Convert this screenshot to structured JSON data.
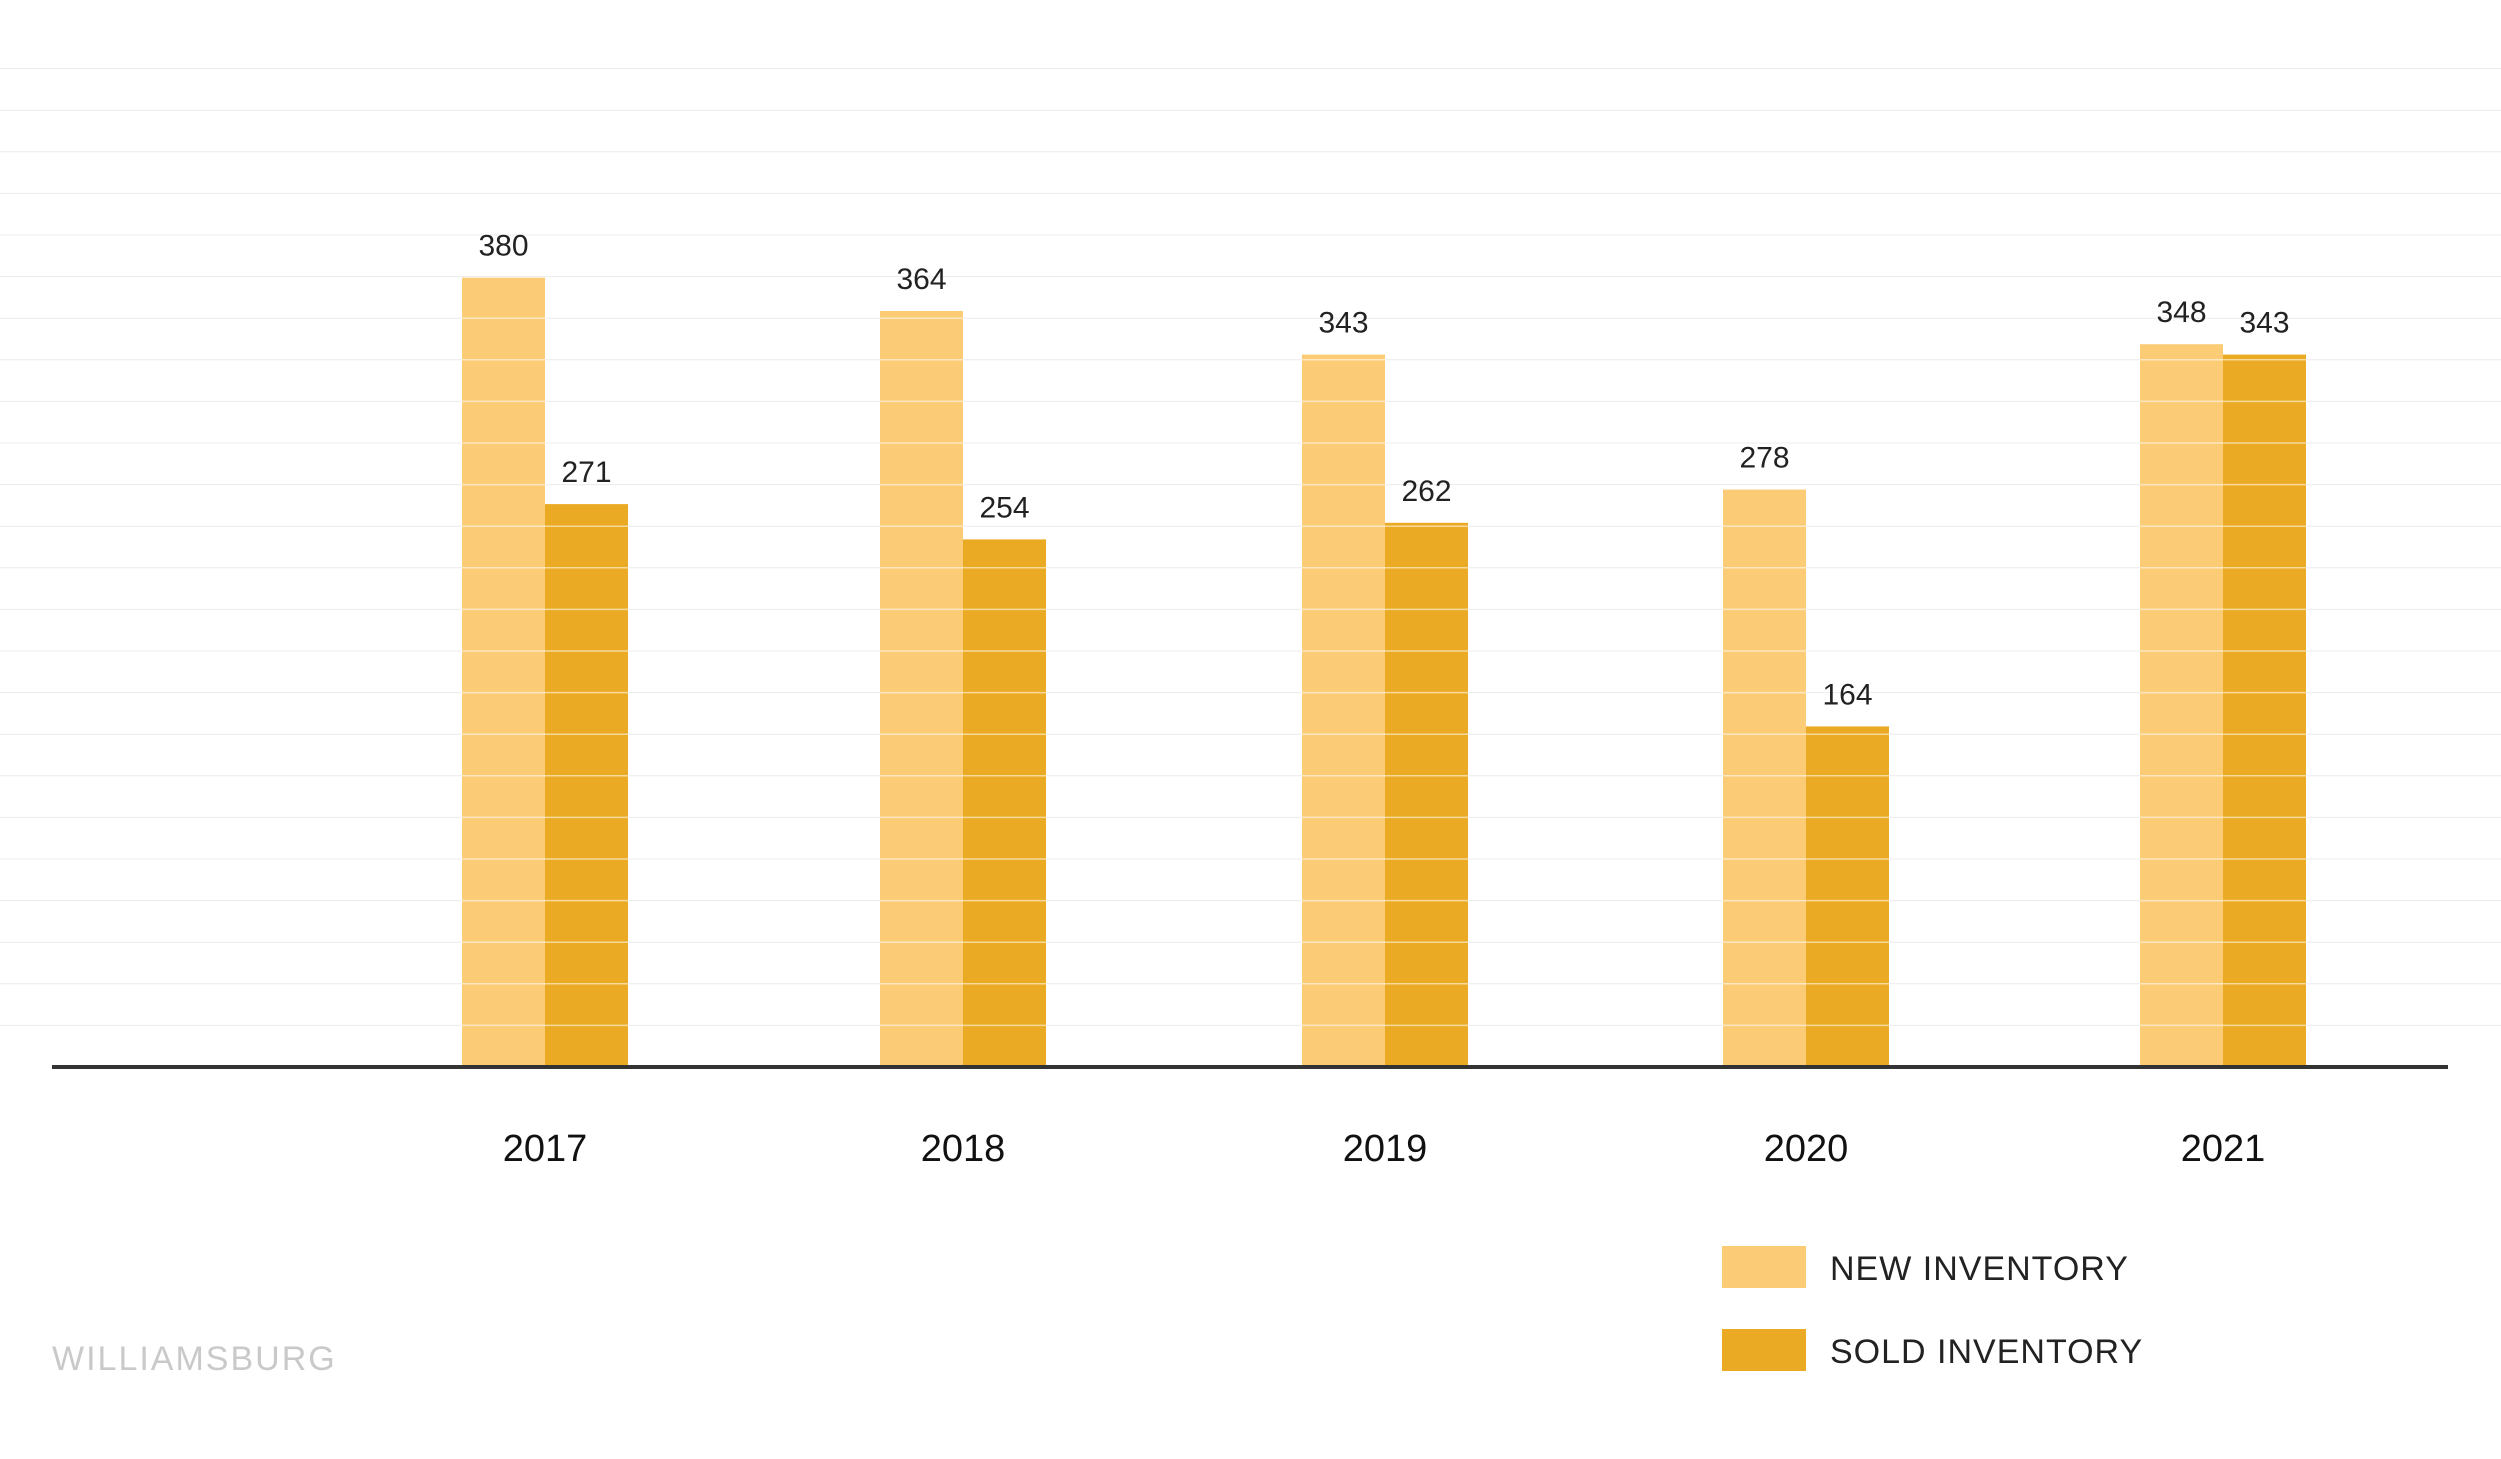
{
  "chart_data": {
    "type": "bar",
    "categories": [
      "2017",
      "2018",
      "2019",
      "2020",
      "2021"
    ],
    "series": [
      {
        "name": "NEW INVENTORY",
        "values": [
          380,
          364,
          343,
          278,
          348
        ],
        "color": "#FCCB75"
      },
      {
        "name": "SOLD INVENTORY",
        "values": [
          271,
          254,
          262,
          164,
          343
        ],
        "color": "#EBAA23"
      }
    ],
    "ylim": [
      0,
      500
    ],
    "grid": true,
    "legend_position": "bottom-right",
    "title": "",
    "xlabel": "",
    "ylabel": ""
  },
  "legend": {
    "new_label": "NEW INVENTORY",
    "sold_label": "SOLD INVENTORY"
  },
  "footer": {
    "region": "WILLIAMSBURG"
  },
  "colors": {
    "new": "#FCCB75",
    "sold": "#EBAA23",
    "axis": "#333333",
    "grid": "#ececec"
  }
}
